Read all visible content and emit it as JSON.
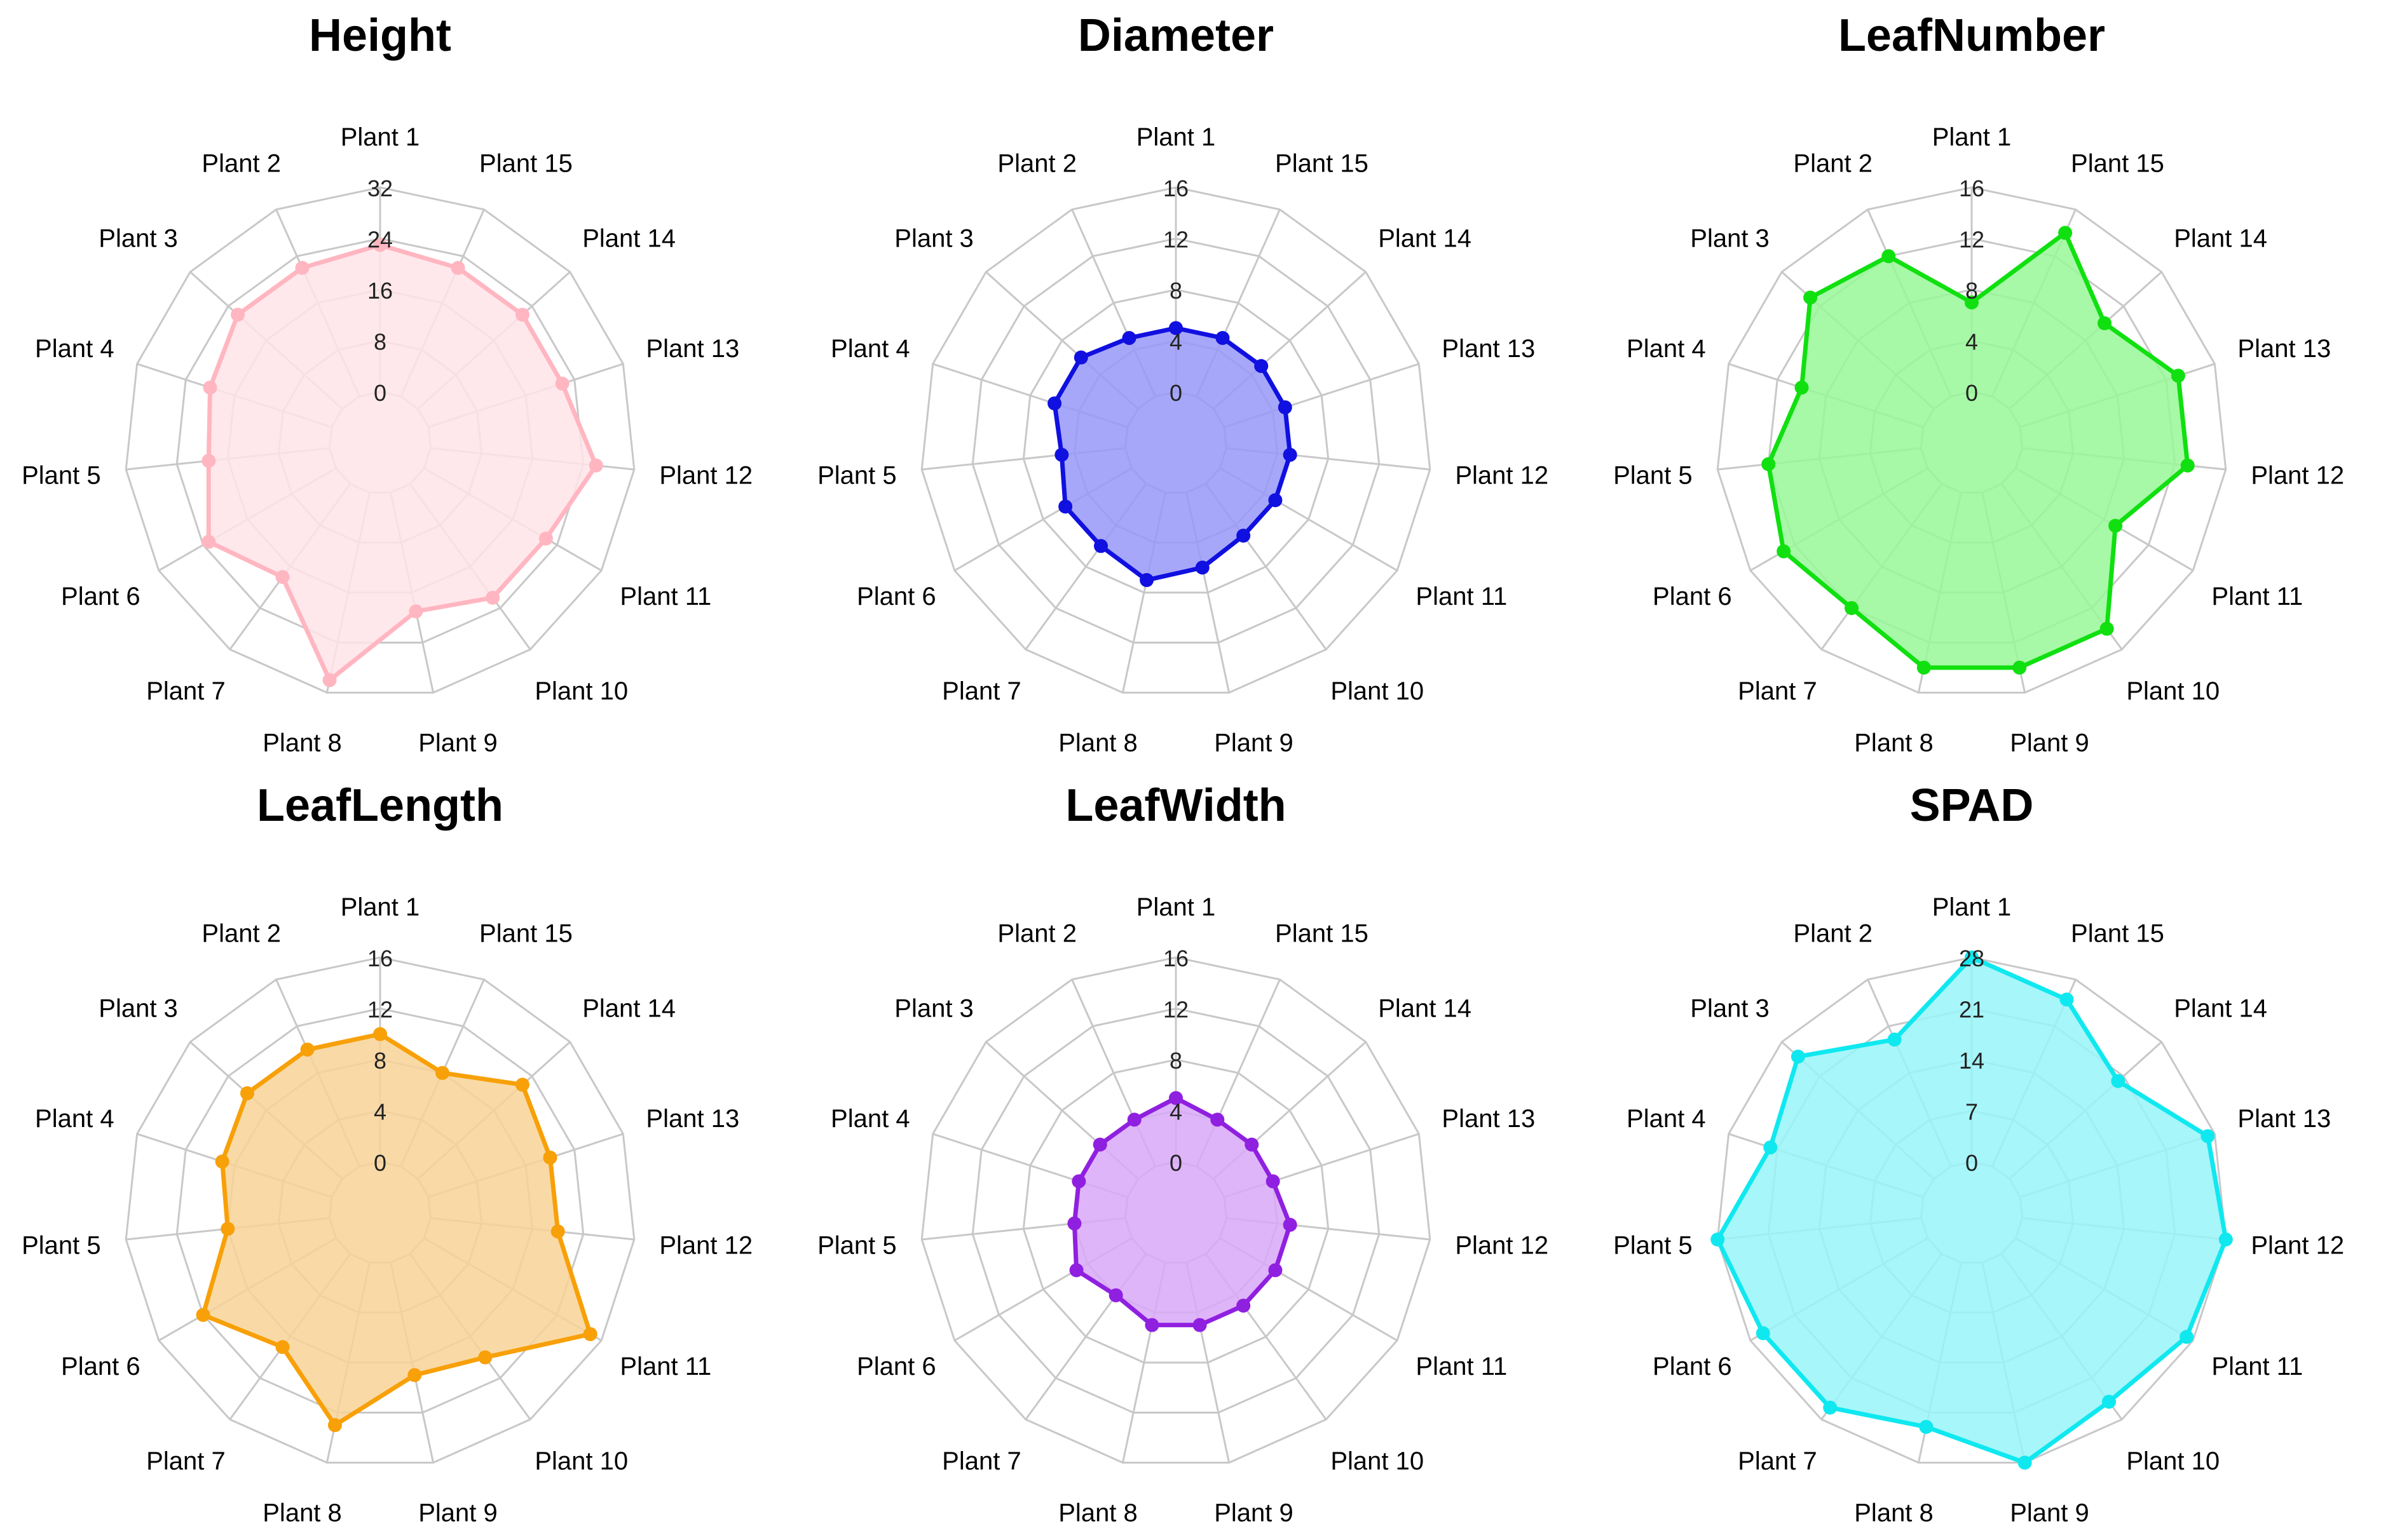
{
  "chart_data": [
    {
      "type": "radar",
      "title": "Height",
      "color": "#ffb6c1",
      "fill": "#ffe4e9",
      "axes": [
        "Plant 1",
        "Plant 15",
        "Plant 14",
        "Plant 13",
        "Plant 12",
        "Plant 11",
        "Plant 10",
        "Plant 9",
        "Plant 8",
        "Plant 7",
        "Plant 6",
        "Plant 5",
        "Plant 4",
        "Plant 3",
        "Plant 2"
      ],
      "ticks": [
        "0",
        "8",
        "16",
        "24",
        "32"
      ],
      "range": [
        0,
        32
      ],
      "values": [
        23,
        22,
        22,
        22,
        26,
        22,
        22,
        19,
        30,
        18,
        23,
        19,
        20,
        22,
        22
      ]
    },
    {
      "type": "radar",
      "title": "Diameter",
      "color": "#1010e0",
      "fill": "#9898f8",
      "axes": [
        "Plant 1",
        "Plant 15",
        "Plant 14",
        "Plant 13",
        "Plant 12",
        "Plant 11",
        "Plant 10",
        "Plant 9",
        "Plant 8",
        "Plant 7",
        "Plant 6",
        "Plant 5",
        "Plant 4",
        "Plant 3",
        "Plant 2"
      ],
      "ticks": [
        "0",
        "4",
        "8",
        "12",
        "16"
      ],
      "range": [
        0,
        16
      ],
      "values": [
        5,
        5,
        5,
        5,
        5,
        5,
        5,
        6,
        7,
        6,
        6,
        5,
        6,
        6,
        5
      ]
    },
    {
      "type": "radar",
      "title": "LeafNumber",
      "color": "#10e010",
      "fill": "#98f898",
      "axes": [
        "Plant 1",
        "Plant 15",
        "Plant 14",
        "Plant 13",
        "Plant 12",
        "Plant 11",
        "Plant 10",
        "Plant 9",
        "Plant 8",
        "Plant 7",
        "Plant 6",
        "Plant 5",
        "Plant 4",
        "Plant 3",
        "Plant 2"
      ],
      "ticks": [
        "0",
        "4",
        "8",
        "12",
        "16"
      ],
      "range": [
        0,
        16
      ],
      "values": [
        7,
        14,
        10,
        13,
        13,
        9,
        14,
        14,
        14,
        12,
        13,
        12,
        10,
        13,
        12
      ]
    },
    {
      "type": "radar",
      "title": "LeafLength",
      "color": "#f8a008",
      "fill": "#f8d498",
      "axes": [
        "Plant 1",
        "Plant 15",
        "Plant 14",
        "Plant 13",
        "Plant 12",
        "Plant 11",
        "Plant 10",
        "Plant 9",
        "Plant 8",
        "Plant 7",
        "Plant 6",
        "Plant 5",
        "Plant 4",
        "Plant 3",
        "Plant 2"
      ],
      "ticks": [
        "0",
        "4",
        "8",
        "12",
        "16"
      ],
      "range": [
        0,
        16
      ],
      "values": [
        10,
        8,
        11,
        10,
        10,
        15,
        10,
        9,
        13,
        9,
        12,
        8,
        9,
        10,
        10
      ]
    },
    {
      "type": "radar",
      "title": "LeafWidth",
      "color": "#9020e0",
      "fill": "#d8a8f8",
      "axes": [
        "Plant 1",
        "Plant 15",
        "Plant 14",
        "Plant 13",
        "Plant 12",
        "Plant 11",
        "Plant 10",
        "Plant 9",
        "Plant 8",
        "Plant 7",
        "Plant 6",
        "Plant 5",
        "Plant 4",
        "Plant 3",
        "Plant 2"
      ],
      "ticks": [
        "0",
        "4",
        "8",
        "12",
        "16"
      ],
      "range": [
        0,
        16
      ],
      "values": [
        5,
        4,
        4,
        4,
        5,
        5,
        5,
        5,
        5,
        4,
        5,
        4,
        4,
        4,
        4
      ]
    },
    {
      "type": "radar",
      "title": "SPAD",
      "color": "#10e8f0",
      "fill": "#98f4f8",
      "axes": [
        "Plant 1",
        "Plant 15",
        "Plant 14",
        "Plant 13",
        "Plant 12",
        "Plant 11",
        "Plant 10",
        "Plant 9",
        "Plant 8",
        "Plant 7",
        "Plant 6",
        "Plant 5",
        "Plant 4",
        "Plant 3",
        "Plant 2"
      ],
      "ticks": [
        "0",
        "7",
        "14",
        "21",
        "28"
      ],
      "range": [
        0,
        28
      ],
      "values": [
        28,
        25,
        20,
        27,
        28,
        27,
        25,
        28,
        23,
        26,
        26,
        28,
        22,
        25,
        19
      ]
    }
  ]
}
